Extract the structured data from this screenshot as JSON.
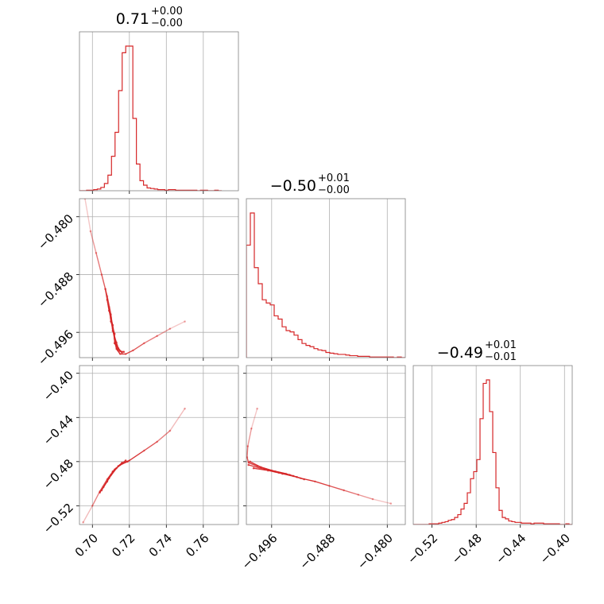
{
  "chart_data": {
    "type": "corner",
    "color": "#d62728",
    "parameters": [
      {
        "range": [
          0.693,
          0.779
        ],
        "ticks": [
          0.7,
          0.72,
          0.74,
          0.76
        ],
        "tick_labels": [
          "0.70",
          "0.72",
          "0.74",
          "0.76"
        ],
        "title": {
          "median": "0.71",
          "upper": "+0.00",
          "lower": "−0.00"
        }
      },
      {
        "range": [
          -0.4995,
          -0.4775
        ],
        "ticks": [
          -0.496,
          -0.488,
          -0.48
        ],
        "tick_labels": [
          "−0.496",
          "−0.488",
          "−0.480"
        ],
        "title": {
          "median": "−0.50",
          "upper": "+0.01",
          "lower": "−0.00"
        }
      },
      {
        "range": [
          -0.537,
          -0.393
        ],
        "ticks": [
          -0.52,
          -0.48,
          -0.44,
          -0.4
        ],
        "tick_labels": [
          "−0.52",
          "−0.48",
          "−0.44",
          "−0.40"
        ],
        "title": {
          "median": "−0.49",
          "upper": "+0.01",
          "lower": "−0.01"
        }
      }
    ],
    "marginals": [
      {
        "param": 0,
        "bin_edges": [
          0.693,
          0.77
        ],
        "counts": [
          0,
          0,
          1,
          1,
          2,
          3,
          6,
          13,
          28,
          62,
          105,
          180,
          248,
          260,
          260,
          130,
          48,
          18,
          10,
          5,
          4,
          3,
          2,
          2,
          1,
          2,
          2,
          1,
          1,
          1,
          1,
          1,
          1,
          0,
          1,
          1,
          0,
          0,
          1,
          0
        ]
      },
      {
        "param": 1,
        "bin_edges": [
          -0.4995,
          -0.4775
        ],
        "counts": [
          175,
          225,
          140,
          115,
          90,
          85,
          82,
          65,
          60,
          48,
          42,
          40,
          35,
          28,
          22,
          19,
          17,
          14,
          12,
          11,
          8,
          7,
          6,
          5,
          5,
          4,
          3,
          3,
          2,
          2,
          2,
          1,
          1,
          1,
          1,
          1,
          1,
          0,
          1,
          0
        ]
      },
      {
        "param": 2,
        "bin_edges": [
          -0.537,
          -0.393
        ],
        "counts": [
          0,
          0,
          0,
          0,
          0,
          1,
          1,
          1,
          2,
          3,
          4,
          6,
          7,
          10,
          14,
          22,
          30,
          45,
          65,
          75,
          92,
          150,
          200,
          205,
          160,
          102,
          52,
          20,
          10,
          8,
          5,
          4,
          3,
          3,
          2,
          2,
          2,
          1,
          2,
          2,
          2,
          1,
          1,
          1,
          1,
          1,
          0,
          0,
          1,
          0
        ]
      }
    ],
    "joint": [
      {
        "x_param": 0,
        "y_param": 1,
        "chains": [
          [
            [
              0.696,
              -0.4775
            ],
            [
              0.699,
              -0.482
            ],
            [
              0.702,
              -0.485
            ],
            [
              0.705,
              -0.488
            ],
            [
              0.708,
              -0.491
            ],
            [
              0.71,
              -0.4935
            ],
            [
              0.711,
              -0.4955
            ],
            [
              0.712,
              -0.497
            ],
            [
              0.713,
              -0.4983
            ],
            [
              0.715,
              -0.499
            ],
            [
              0.718,
              -0.499
            ],
            [
              0.722,
              -0.4985
            ],
            [
              0.728,
              -0.4975
            ],
            [
              0.735,
              -0.4965
            ],
            [
              0.742,
              -0.4955
            ],
            [
              0.75,
              -0.4945
            ]
          ],
          [
            [
              0.707,
              -0.49
            ],
            [
              0.709,
              -0.493
            ],
            [
              0.711,
              -0.495
            ],
            [
              0.712,
              -0.4968
            ],
            [
              0.713,
              -0.4978
            ],
            [
              0.715,
              -0.4986
            ],
            [
              0.717,
              -0.4987
            ]
          ],
          [
            [
              0.708,
              -0.4915
            ],
            [
              0.71,
              -0.494
            ],
            [
              0.711,
              -0.4958
            ],
            [
              0.713,
              -0.4974
            ],
            [
              0.714,
              -0.4982
            ],
            [
              0.716,
              -0.4988
            ]
          ],
          [
            [
              0.709,
              -0.4925
            ],
            [
              0.71,
              -0.4945
            ],
            [
              0.712,
              -0.4962
            ],
            [
              0.712,
              -0.4975
            ],
            [
              0.714,
              -0.4985
            ]
          ]
        ]
      },
      {
        "x_param": 0,
        "y_param": 2,
        "chains": [
          [
            [
              0.695,
              -0.535
            ],
            [
              0.7,
              -0.52
            ],
            [
              0.704,
              -0.507
            ],
            [
              0.708,
              -0.496
            ],
            [
              0.712,
              -0.487
            ],
            [
              0.716,
              -0.482
            ],
            [
              0.72,
              -0.479
            ],
            [
              0.728,
              -0.47
            ],
            [
              0.735,
              -0.462
            ],
            [
              0.742,
              -0.452
            ],
            [
              0.75,
              -0.432
            ]
          ],
          [
            [
              0.704,
              -0.508
            ],
            [
              0.708,
              -0.498
            ],
            [
              0.711,
              -0.489
            ],
            [
              0.715,
              -0.483
            ],
            [
              0.719,
              -0.48
            ]
          ],
          [
            [
              0.705,
              -0.506
            ],
            [
              0.709,
              -0.495
            ],
            [
              0.713,
              -0.486
            ],
            [
              0.716,
              -0.481
            ]
          ],
          [
            [
              0.706,
              -0.503
            ],
            [
              0.71,
              -0.492
            ],
            [
              0.714,
              -0.484
            ],
            [
              0.718,
              -0.479
            ]
          ]
        ]
      },
      {
        "x_param": 1,
        "y_param": 2,
        "chains": [
          [
            [
              -0.498,
              -0.432
            ],
            [
              -0.4988,
              -0.45
            ],
            [
              -0.4993,
              -0.466
            ],
            [
              -0.4994,
              -0.476
            ],
            [
              -0.4992,
              -0.481
            ],
            [
              -0.498,
              -0.484
            ],
            [
              -0.496,
              -0.488
            ],
            [
              -0.494,
              -0.491
            ],
            [
              -0.492,
              -0.495
            ],
            [
              -0.49,
              -0.498
            ],
            [
              -0.488,
              -0.502
            ],
            [
              -0.486,
              -0.506
            ],
            [
              -0.484,
              -0.51
            ],
            [
              -0.482,
              -0.514
            ],
            [
              -0.4795,
              -0.518
            ]
          ],
          [
            [
              -0.499,
              -0.48
            ],
            [
              -0.4975,
              -0.485
            ],
            [
              -0.4955,
              -0.489
            ],
            [
              -0.4935,
              -0.492
            ],
            [
              -0.4915,
              -0.496
            ]
          ],
          [
            [
              -0.4992,
              -0.483
            ],
            [
              -0.497,
              -0.487
            ],
            [
              -0.495,
              -0.49
            ],
            [
              -0.493,
              -0.493
            ]
          ],
          [
            [
              -0.4985,
              -0.486
            ],
            [
              -0.4965,
              -0.488
            ],
            [
              -0.4945,
              -0.491
            ],
            [
              -0.4925,
              -0.494
            ]
          ]
        ]
      }
    ]
  }
}
